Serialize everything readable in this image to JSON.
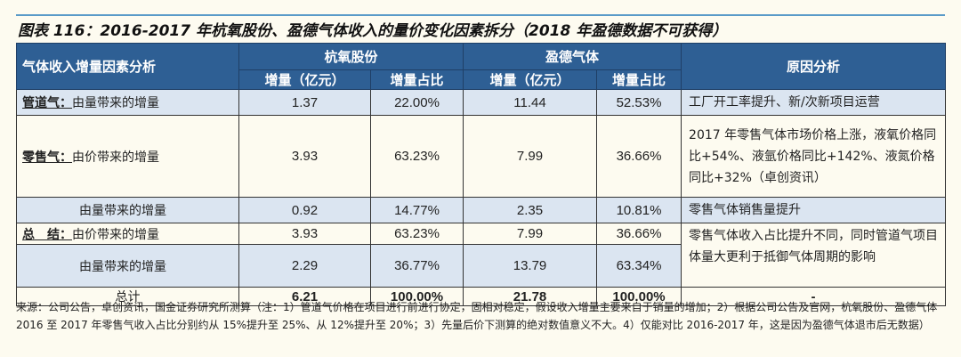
{
  "title": "图表 116：2016-2017 年杭氧股份、盈德气体收入的量价变化因素拆分（2018 年盈德数据不可获得）",
  "header": {
    "factor": "气体收入增量因素分析",
    "company1": "杭氧股份",
    "company2": "盈德气体",
    "inc": "增量（亿元）",
    "share": "增量占比",
    "reason": "原因分析"
  },
  "rows": [
    {
      "label": "管道气：",
      "desc": "由量带来的增量",
      "v1": "1.37",
      "p1": "22.00%",
      "v2": "11.44",
      "p2": "52.53%",
      "reason": "工厂开工率提升、新/次新项目运营"
    },
    {
      "label": "零售气：",
      "desc": "由价带来的增量",
      "v1": "3.93",
      "p1": "63.23%",
      "v2": "7.99",
      "p2": "36.66%",
      "reason": "2017 年零售气体市场价格上涨，液氧价格同比+54%、液氩价格同比+142%、液氮价格同比+32%（卓创资讯）"
    },
    {
      "desc": "由量带来的增量",
      "v1": "0.92",
      "p1": "14.77%",
      "v2": "2.35",
      "p2": "10.81%",
      "reason": "零售气体销售量提升"
    },
    {
      "label": "总　结：",
      "desc": "由价带来的增量",
      "v1": "3.93",
      "p1": "63.23%",
      "v2": "7.99",
      "p2": "36.66%",
      "reason": "零售气体收入占比提升不同，同时管道气项目体量大更利于抵御气体周期的影响"
    },
    {
      "desc": "由量带来的增量",
      "v1": "2.29",
      "p1": "36.77%",
      "v2": "13.79",
      "p2": "63.34%"
    }
  ],
  "total": {
    "label": "总计",
    "v1": "6.21",
    "p1": "100.00%",
    "v2": "21.78",
    "p2": "100.00%",
    "reason": "-"
  },
  "note": "来源：公司公告，卓创资讯，国金证券研究所测算（注：1）管道气价格在项目进行前进行协定，固相对稳定，假设收入增量主要来自于销量的增加；2）根据公司公告及官网，杭氧股份、盈德气体 2016 至 2017 年零售气收入占比分别约从 15%提升至 25%、从 12%提升至 20%；3）先量后价下测算的绝对数值意义不大。4）仅能对比 2016-2017 年，这是因为盈德气体退市后无数据）"
}
